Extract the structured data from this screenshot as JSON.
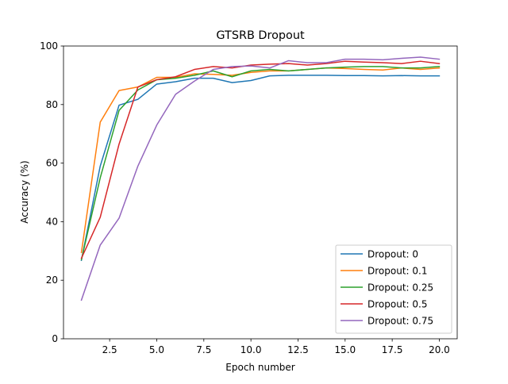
{
  "chart_data": {
    "type": "line",
    "title": "GTSRB Dropout",
    "xlabel": "Epoch number",
    "ylabel": "Accuracy (%)",
    "xlim": [
      0.05,
      20.95
    ],
    "ylim": [
      0,
      100
    ],
    "xticks": [
      2.5,
      5.0,
      7.5,
      10.0,
      12.5,
      15.0,
      17.5,
      20.0
    ],
    "xtick_labels": [
      "2.5",
      "5.0",
      "7.5",
      "10.0",
      "12.5",
      "15.0",
      "17.5",
      "20.0"
    ],
    "yticks": [
      0,
      20,
      40,
      60,
      80,
      100
    ],
    "ytick_labels": [
      "0",
      "20",
      "40",
      "60",
      "80",
      "100"
    ],
    "grid": false,
    "legend_position": "lower-right",
    "x": [
      1,
      2,
      3,
      4,
      5,
      6,
      7,
      8,
      9,
      10,
      11,
      12,
      13,
      14,
      15,
      16,
      17,
      18,
      19,
      20
    ],
    "series": [
      {
        "name": "Dropout: 0",
        "color": "#1f77b4",
        "values": [
          26.8,
          59.0,
          79.8,
          81.8,
          87.0,
          87.8,
          89.0,
          89.0,
          87.5,
          88.2,
          89.8,
          90.0,
          90.0,
          90.0,
          89.9,
          89.9,
          89.8,
          89.9,
          89.8,
          89.8
        ]
      },
      {
        "name": "Dropout: 0.1",
        "color": "#ff7f0e",
        "values": [
          29.5,
          74.0,
          84.8,
          86.0,
          89.3,
          89.3,
          90.5,
          90.3,
          90.0,
          91.0,
          91.5,
          91.5,
          92.0,
          92.5,
          92.3,
          92.0,
          91.8,
          92.5,
          92.0,
          92.5
        ]
      },
      {
        "name": "Dropout: 0.25",
        "color": "#2ca02c",
        "values": [
          27.0,
          55.0,
          78.0,
          85.0,
          88.5,
          89.0,
          90.0,
          91.5,
          89.5,
          91.5,
          92.0,
          91.5,
          92.0,
          92.5,
          92.8,
          93.0,
          93.0,
          92.5,
          92.5,
          93.0
        ]
      },
      {
        "name": "Dropout: 0.5",
        "color": "#d62728",
        "values": [
          27.5,
          41.5,
          66.5,
          86.0,
          88.5,
          89.5,
          92.0,
          93.0,
          92.5,
          93.5,
          93.8,
          94.0,
          93.5,
          94.0,
          94.8,
          94.5,
          94.3,
          94.0,
          94.8,
          94.0
        ]
      },
      {
        "name": "Dropout: 0.75",
        "color": "#9467bd",
        "values": [
          13.2,
          32.0,
          41.2,
          59.0,
          73.0,
          83.5,
          88.0,
          92.0,
          93.0,
          93.2,
          92.5,
          95.0,
          94.3,
          94.3,
          95.5,
          95.5,
          95.3,
          95.8,
          96.2,
          95.5
        ]
      }
    ]
  }
}
